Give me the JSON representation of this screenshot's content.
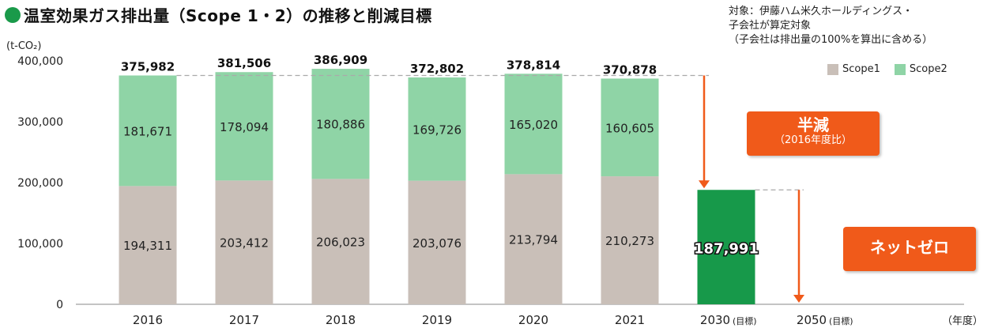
{
  "title": "温室効果ガス排出量（Scope 1・2）の推移と削減目標",
  "note": [
    "対象：伊藤ハム米久ホールディングス・",
    "子会社が算定対象",
    "（子会社は排出量の100%を算出に含める）"
  ],
  "callouts": {
    "half": {
      "main": "半減",
      "sub": "（2016年度比）"
    },
    "netzero": {
      "main": "ネットゼロ"
    }
  },
  "colors": {
    "scope1": "#c9bfb8",
    "scope2": "#8fd4a6",
    "target": "#17994a",
    "arrow": "#f05a1a",
    "accent": "#1a9a4a"
  },
  "chart_data": {
    "type": "bar",
    "stacked": true,
    "categories": [
      "2016",
      "2017",
      "2018",
      "2019",
      "2020",
      "2021",
      "2030",
      "2050"
    ],
    "category_suffix": [
      "",
      "",
      "",
      "",
      "",
      "",
      "(目標)",
      "(目標)"
    ],
    "series": [
      {
        "name": "Scope1",
        "values": [
          194311,
          203412,
          206023,
          203076,
          213794,
          210273,
          null,
          null
        ]
      },
      {
        "name": "Scope2",
        "values": [
          181671,
          178094,
          180886,
          169726,
          165020,
          160605,
          null,
          null
        ]
      }
    ],
    "totals": [
      "375,982",
      "381,506",
      "386,909",
      "372,802",
      "378,814",
      "370,878"
    ],
    "scope1_labels": [
      "194,311",
      "203,412",
      "206,023",
      "203,076",
      "213,794",
      "210,273"
    ],
    "scope2_labels": [
      "181,671",
      "178,094",
      "180,886",
      "169,726",
      "165,020",
      "160,605"
    ],
    "target": {
      "category": "2030",
      "value": 187991,
      "label": "187,991"
    },
    "ylabel": "(t-CO₂)",
    "xlabel": "（年度）",
    "ylim": [
      0,
      400000
    ],
    "yticks": [
      0,
      100000,
      200000,
      300000,
      400000
    ],
    "ytick_labels": [
      "0",
      "100,000",
      "200,000",
      "300,000",
      "400,000"
    ],
    "legend_position": "top-right",
    "grid": false
  }
}
